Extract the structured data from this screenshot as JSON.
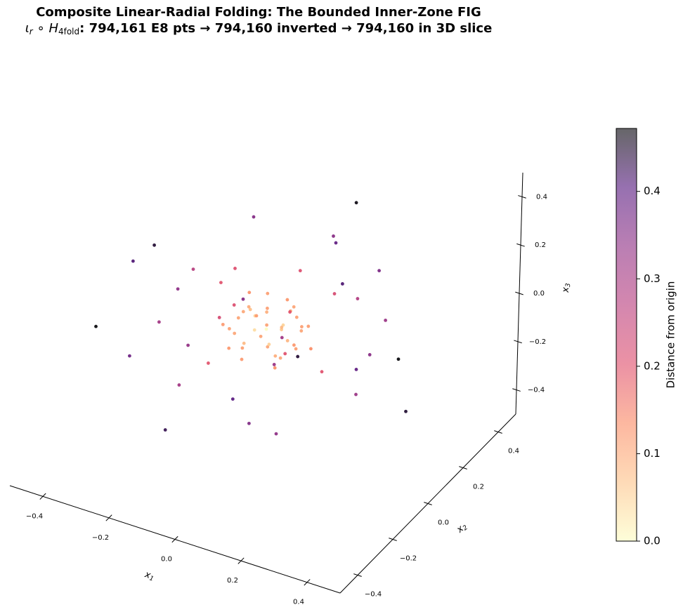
{
  "chart_data": {
    "type": "scatter3d",
    "title": "Composite Linear-Radial Folding: The Bounded Inner-Zone FIG",
    "subtitle": [
      "ι",
      "r",
      " ∘ ",
      "H",
      "4fold",
      ": 794,161 E8 pts → 794,160 inverted → 794,160 in 3D slice"
    ],
    "xlabel": [
      "x",
      "1"
    ],
    "ylabel": [
      "x",
      "2"
    ],
    "zlabel": [
      "x",
      "3"
    ],
    "colorbar_label": "Distance from origin",
    "xlim": [
      -0.5,
      0.5
    ],
    "ylim": [
      -0.5,
      0.5
    ],
    "zlim": [
      -0.5,
      0.5
    ],
    "xticks": [
      {
        "value": -0.4,
        "label": "−0.4"
      },
      {
        "value": -0.2,
        "label": "−0.2"
      },
      {
        "value": 0,
        "label": "0.0"
      },
      0.2,
      0.4
    ],
    "yticks": [
      {
        "value": -0.4,
        "label": "−0.4"
      },
      {
        "value": -0.2,
        "label": "−0.2"
      },
      {
        "value": 0,
        "label": "0.0"
      },
      0.2,
      0.4
    ],
    "zticks": [
      {
        "value": -0.4,
        "label": "−0.4"
      },
      {
        "value": -0.2,
        "label": "−0.2"
      },
      {
        "value": 0,
        "label": "0.0"
      },
      0.2,
      0.4
    ],
    "clim": [
      0,
      0.472
    ],
    "cticks": [
      {
        "value": 0,
        "label": "0.0"
      },
      0.1,
      0.2,
      0.3,
      0.4
    ],
    "colormap": [
      "#fcfdbf",
      "#fec287",
      "#fb8861",
      "#de4968",
      "#b73779",
      "#8c2981",
      "#51127c",
      "#000004"
    ],
    "alpha": 0.6,
    "x": [
      0.02,
      -0.06,
      0.08,
      -0.03,
      0.05,
      -0.09,
      0.01,
      0.07,
      -0.04,
      0.1,
      -0.08,
      0.03,
      -0.01,
      0.06,
      -0.05,
      0.0,
      0.04,
      -0.02,
      0.09,
      -0.1,
      0.02,
      -0.07,
      0.05,
      -0.03,
      0.11,
      -0.06,
      0.01,
      -0.02,
      0.08,
      -0.09,
      0.03,
      -0.04,
      0.06,
      -0.11,
      0.0,
      0.07,
      -0.05,
      0.12,
      -0.08,
      0.04,
      0.16,
      -0.14,
      0.13,
      -0.12,
      0.02,
      -0.16,
      0.14,
      -0.06,
      0.1,
      -0.13,
      0.22,
      -0.25,
      0.15,
      -0.18,
      0.3,
      -0.32,
      0.05,
      -0.08,
      0.2,
      -0.15,
      0.28,
      -0.22,
      0.1,
      -0.05,
      0.35,
      -0.38,
      0.18,
      -0.2,
      0.12,
      -0.28,
      0.4,
      -0.42,
      0.02,
      0.25,
      -0.1,
      0.15,
      -0.12,
      0.45,
      -0.45,
      0.08
    ],
    "y": [
      0.05,
      0.02,
      -0.03,
      -0.07,
      0.06,
      -0.01,
      -0.02,
      0.04,
      0.08,
      0.01,
      0.05,
      -0.09,
      0.03,
      -0.06,
      -0.04,
      0.0,
      0.02,
      -0.03,
      0.07,
      0.03,
      0.1,
      -0.08,
      -0.01,
      0.06,
      -0.05,
      -0.02,
      0.07,
      -0.1,
      0.02,
      0.07,
      -0.04,
      0.01,
      0.09,
      -0.04,
      -0.06,
      -0.08,
      0.1,
      0.03,
      -0.06,
      0.04,
      0.02,
      0.08,
      -0.14,
      -0.1,
      0.15,
      0.12,
      0.12,
      -0.16,
      -0.06,
      -0.02,
      0.1,
      0.05,
      -0.2,
      -0.15,
      -0.05,
      0.1,
      0.28,
      -0.3,
      0.22,
      0.2,
      0.15,
      -0.2,
      -0.12,
      0.15,
      -0.15,
      -0.05,
      0.3,
      0.25,
      -0.32,
      -0.25,
      0.05,
      0.15,
      0.4,
      -0.3,
      -0.38,
      0.1,
      0.05,
      -0.1,
      -0.12,
      0.35
    ],
    "z": [
      -0.03,
      0.04,
      0.01,
      -0.02,
      0.07,
      -0.05,
      0.09,
      -0.08,
      -0.06,
      0.03,
      0.02,
      0.05,
      -0.1,
      -0.04,
      0.08,
      0.0,
      0.02,
      0.01,
      0.0,
      -0.02,
      0.01,
      0.03,
      -0.09,
      0.09,
      0.02,
      -0.09,
      -0.04,
      -0.06,
      0.07,
      0.06,
      -0.02,
      0.03,
      -0.03,
      0.0,
      0.1,
      -0.07,
      -0.01,
      -0.05,
      -0.07,
      0.11,
      -0.12,
      0.13,
      0.06,
      -0.12,
      0.14,
      -0.06,
      0.12,
      0.14,
      0.16,
      0.15,
      0.15,
      0.1,
      0.18,
      -0.2,
      -0.1,
      -0.05,
      0.2,
      0.12,
      -0.18,
      0.25,
      0.05,
      0.08,
      -0.3,
      -0.28,
      0.1,
      0.15,
      0.1,
      -0.15,
      -0.1,
      -0.05,
      -0.2,
      0.05,
      -0.1,
      0.22,
      -0.18,
      0.35,
      -0.38,
      0.15,
      -0.1,
      0.3
    ]
  }
}
